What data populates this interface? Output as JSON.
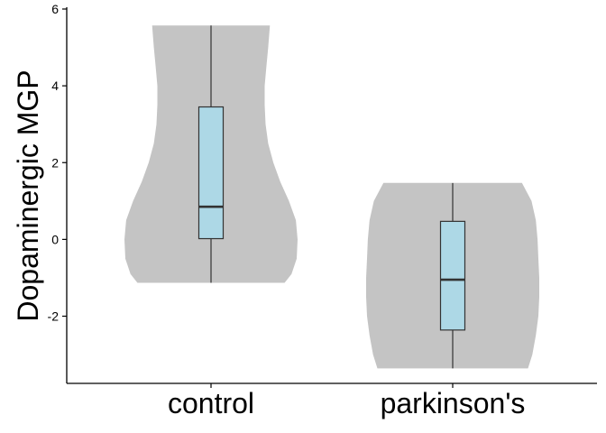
{
  "chart_data": {
    "type": "violin",
    "title": "",
    "xlabel": "",
    "ylabel": "Dopaminergic MGP",
    "ylim": [
      -3.75,
      6
    ],
    "y_ticks": [
      -2,
      0,
      2,
      4,
      6
    ],
    "y_tick_labels": [
      "-2",
      "0",
      "2",
      "4",
      "6"
    ],
    "grid": false,
    "categories": [
      "control",
      "parkinson's"
    ],
    "colors": {
      "violin": "#c4c4c4",
      "box": "#add8e6",
      "line": "#333333",
      "axis": "#000000"
    },
    "groups": [
      {
        "name": "control",
        "min": -1.13,
        "q1": 0.02,
        "median": 0.85,
        "q3": 3.45,
        "max": 5.57,
        "density": [
          [
            -1.13,
            0.85
          ],
          [
            -0.9,
            0.93
          ],
          [
            -0.5,
            0.99
          ],
          [
            0.0,
            1.0
          ],
          [
            0.5,
            0.98
          ],
          [
            1.0,
            0.9
          ],
          [
            1.5,
            0.8
          ],
          [
            2.0,
            0.72
          ],
          [
            2.5,
            0.66
          ],
          [
            3.0,
            0.63
          ],
          [
            3.5,
            0.62
          ],
          [
            4.0,
            0.62
          ],
          [
            4.5,
            0.64
          ],
          [
            5.0,
            0.66
          ],
          [
            5.57,
            0.68
          ]
        ]
      },
      {
        "name": "parkinson's",
        "min": -3.36,
        "q1": -2.36,
        "median": -1.05,
        "q3": 0.47,
        "max": 1.47,
        "density": [
          [
            -3.36,
            0.87
          ],
          [
            -3.0,
            0.92
          ],
          [
            -2.5,
            0.96
          ],
          [
            -2.0,
            0.99
          ],
          [
            -1.5,
            1.0
          ],
          [
            -1.0,
            1.0
          ],
          [
            -0.5,
            0.99
          ],
          [
            0.0,
            0.98
          ],
          [
            0.5,
            0.96
          ],
          [
            1.0,
            0.91
          ],
          [
            1.47,
            0.8
          ]
        ]
      }
    ]
  }
}
